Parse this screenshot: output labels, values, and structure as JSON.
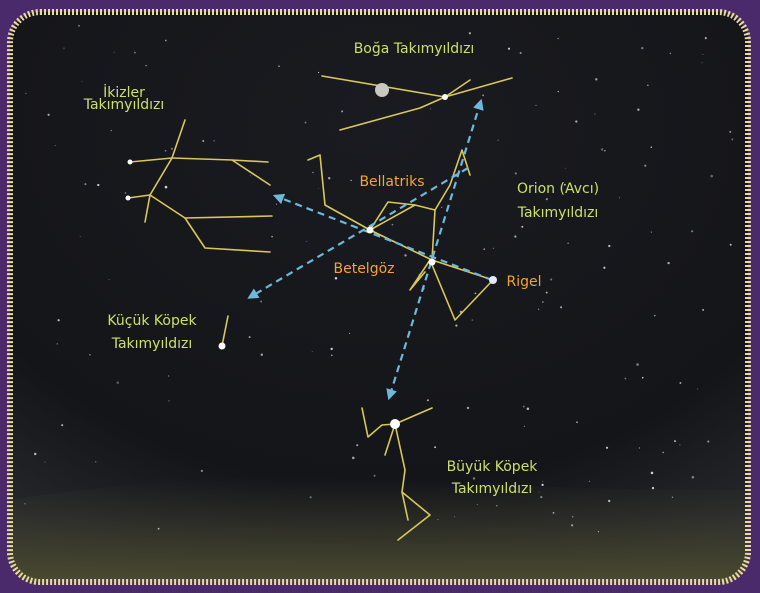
{
  "labels": {
    "taurus": {
      "lines": [
        "Boğa Takımyıldızı"
      ]
    },
    "gemini": {
      "lines": [
        "İkizler",
        "Takımyıldızı"
      ]
    },
    "orion": {
      "lines": [
        "Orion (Avcı)",
        "Takımyıldızı"
      ]
    },
    "canis_minor": {
      "lines": [
        "Küçük Köpek",
        "Takımyıldızı"
      ]
    },
    "canis_major": {
      "lines": [
        "Büyük Köpek",
        "Takımyıldızı"
      ]
    }
  },
  "stars": {
    "bellatrix": "Bellatriks",
    "betelgeuse": "Betelgöz",
    "rigel": "Rigel"
  }
}
